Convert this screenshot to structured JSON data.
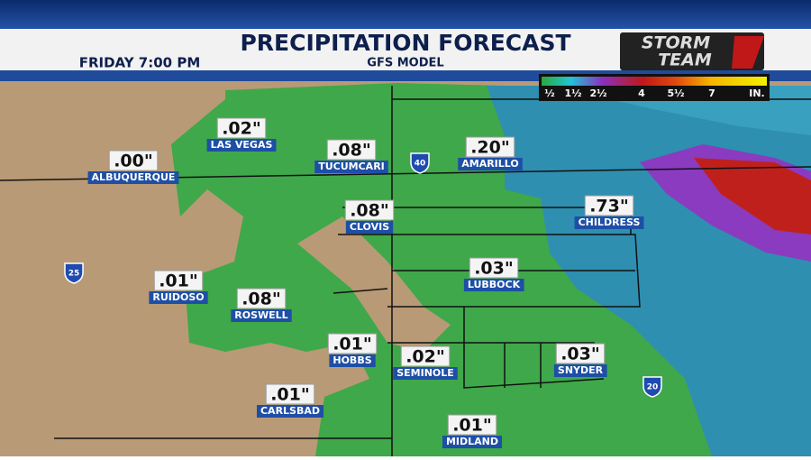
{
  "header": {
    "title": "PRECIPITATION FORECAST",
    "subtitle": "GFS MODEL",
    "time": "FRIDAY  7:00 PM",
    "logo": [
      "STORM",
      "TEAM"
    ]
  },
  "legend": {
    "labels": [
      "½",
      "1½",
      "2½",
      "4",
      "5½",
      "7",
      "IN."
    ]
  },
  "cities": [
    {
      "name": "ALBUQUERQUE",
      "amount": ".00\""
    },
    {
      "name": "LAS VEGAS",
      "amount": ".02\""
    },
    {
      "name": "TUCUMCARI",
      "amount": ".08\""
    },
    {
      "name": "AMARILLO",
      "amount": ".20\""
    },
    {
      "name": "CLOVIS",
      "amount": ".08\""
    },
    {
      "name": "CHILDRESS",
      "amount": ".73\""
    },
    {
      "name": "RUIDOSO",
      "amount": ".01\""
    },
    {
      "name": "ROSWELL",
      "amount": ".08\""
    },
    {
      "name": "LUBBOCK",
      "amount": ".03\""
    },
    {
      "name": "HOBBS",
      "amount": ".01\""
    },
    {
      "name": "SEMINOLE",
      "amount": ".02\""
    },
    {
      "name": "SNYDER",
      "amount": ".03\""
    },
    {
      "name": "CARLSBAD",
      "amount": ".01\""
    },
    {
      "name": "MIDLAND",
      "amount": ".01\""
    }
  ],
  "highways": [
    "40",
    "25",
    "20"
  ]
}
